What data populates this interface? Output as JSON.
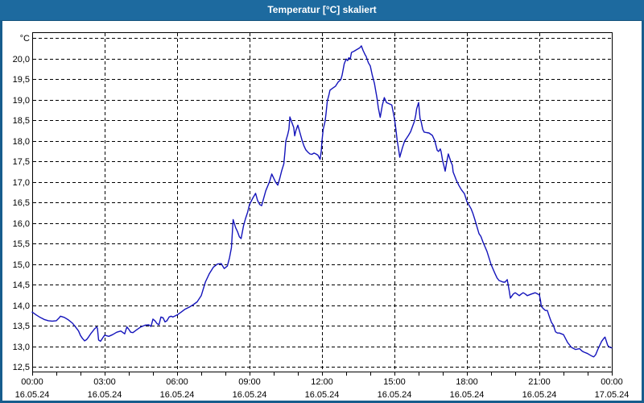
{
  "window": {
    "title": "Temperatur [°C] skaliert"
  },
  "colors": {
    "titlebar_bg": "#1d6a9f",
    "window_border": "#175d8d",
    "title_text": "#ffffff",
    "plot_bg": "#ffffff",
    "grid": "#000000",
    "axis_text": "#000000",
    "line": "#1414bb"
  },
  "chart_data": {
    "type": "line",
    "title": "Temperatur [°C] skaliert",
    "y_unit_label": "°C",
    "xlim_hours": [
      0,
      24
    ],
    "ylim": [
      12.38,
      20.62
    ],
    "grid": "dashed",
    "x_axis": {
      "minor_tick_every_hours": 1,
      "labels": [
        {
          "h": 0,
          "time": "00:00",
          "date": "16.05.24"
        },
        {
          "h": 3,
          "time": "03:00",
          "date": "16.05.24"
        },
        {
          "h": 6,
          "time": "06:00",
          "date": "16.05.24"
        },
        {
          "h": 9,
          "time": "09:00",
          "date": "16.05.24"
        },
        {
          "h": 12,
          "time": "12:00",
          "date": "16.05.24"
        },
        {
          "h": 15,
          "time": "15:00",
          "date": "16.05.24"
        },
        {
          "h": 18,
          "time": "18:00",
          "date": "16.05.24"
        },
        {
          "h": 21,
          "time": "21:00",
          "date": "16.05.24"
        },
        {
          "h": 24,
          "time": "00:00",
          "date": "17.05.24"
        }
      ]
    },
    "y_axis": {
      "min_labeled": 12.5,
      "max_gridline": 20.5,
      "grid_step": 0.5,
      "tick_labels": [
        "12,5",
        "13,0",
        "13,5",
        "14,0",
        "14,5",
        "15,0",
        "15,5",
        "16,0",
        "16,5",
        "17,0",
        "17,5",
        "18,0",
        "18,5",
        "19,0",
        "19,5",
        "20,0"
      ]
    },
    "series": [
      {
        "name": "Temperatur",
        "color": "#1414bb",
        "points_hour_temp": [
          [
            0,
            13.83
          ],
          [
            0.17,
            13.76
          ],
          [
            0.33,
            13.7
          ],
          [
            0.5,
            13.65
          ],
          [
            0.67,
            13.62
          ],
          [
            0.83,
            13.61
          ],
          [
            1,
            13.62
          ],
          [
            1.1,
            13.68
          ],
          [
            1.17,
            13.73
          ],
          [
            1.33,
            13.7
          ],
          [
            1.5,
            13.64
          ],
          [
            1.67,
            13.56
          ],
          [
            1.83,
            13.44
          ],
          [
            1.92,
            13.37
          ],
          [
            2,
            13.26
          ],
          [
            2.08,
            13.19
          ],
          [
            2.17,
            13.13
          ],
          [
            2.25,
            13.16
          ],
          [
            2.33,
            13.22
          ],
          [
            2.42,
            13.3
          ],
          [
            2.5,
            13.36
          ],
          [
            2.58,
            13.42
          ],
          [
            2.67,
            13.47
          ],
          [
            2.7,
            13.44
          ],
          [
            2.75,
            13.15
          ],
          [
            2.83,
            13.12
          ],
          [
            2.92,
            13.2
          ],
          [
            3,
            13.27
          ],
          [
            3.17,
            13.24
          ],
          [
            3.33,
            13.28
          ],
          [
            3.5,
            13.34
          ],
          [
            3.67,
            13.37
          ],
          [
            3.83,
            13.3
          ],
          [
            3.92,
            13.47
          ],
          [
            4,
            13.41
          ],
          [
            4.08,
            13.34
          ],
          [
            4.17,
            13.33
          ],
          [
            4.33,
            13.4
          ],
          [
            4.5,
            13.47
          ],
          [
            4.67,
            13.51
          ],
          [
            4.83,
            13.52
          ],
          [
            4.92,
            13.48
          ],
          [
            5,
            13.66
          ],
          [
            5.08,
            13.62
          ],
          [
            5.17,
            13.55
          ],
          [
            5.25,
            13.52
          ],
          [
            5.33,
            13.71
          ],
          [
            5.42,
            13.69
          ],
          [
            5.5,
            13.59
          ],
          [
            5.58,
            13.62
          ],
          [
            5.67,
            13.71
          ],
          [
            5.75,
            13.73
          ],
          [
            5.83,
            13.71
          ],
          [
            6,
            13.76
          ],
          [
            6.17,
            13.83
          ],
          [
            6.33,
            13.9
          ],
          [
            6.5,
            13.95
          ],
          [
            6.67,
            14.01
          ],
          [
            6.83,
            14.08
          ],
          [
            7,
            14.23
          ],
          [
            7.17,
            14.56
          ],
          [
            7.33,
            14.76
          ],
          [
            7.5,
            14.92
          ],
          [
            7.67,
            15
          ],
          [
            7.83,
            15.01
          ],
          [
            7.95,
            14.89
          ],
          [
            8.08,
            14.95
          ],
          [
            8.17,
            15.15
          ],
          [
            8.25,
            15.4
          ],
          [
            8.32,
            16.08
          ],
          [
            8.42,
            15.89
          ],
          [
            8.5,
            15.79
          ],
          [
            8.58,
            15.66
          ],
          [
            8.65,
            15.62
          ],
          [
            8.75,
            15.93
          ],
          [
            8.83,
            16.1
          ],
          [
            8.92,
            16.26
          ],
          [
            9,
            16.45
          ],
          [
            9.13,
            16.6
          ],
          [
            9.25,
            16.72
          ],
          [
            9.33,
            16.55
          ],
          [
            9.42,
            16.45
          ],
          [
            9.5,
            16.42
          ],
          [
            9.67,
            16.78
          ],
          [
            9.83,
            17.01
          ],
          [
            9.92,
            17.19
          ],
          [
            10.08,
            16.99
          ],
          [
            10.17,
            16.92
          ],
          [
            10.25,
            17.08
          ],
          [
            10.33,
            17.27
          ],
          [
            10.42,
            17.44
          ],
          [
            10.47,
            17.76
          ],
          [
            10.5,
            17.99
          ],
          [
            10.55,
            18.09
          ],
          [
            10.58,
            18.15
          ],
          [
            10.63,
            18.28
          ],
          [
            10.67,
            18.58
          ],
          [
            10.75,
            18.45
          ],
          [
            10.83,
            18.32
          ],
          [
            10.87,
            18.12
          ],
          [
            10.92,
            18.25
          ],
          [
            11,
            18.38
          ],
          [
            11.08,
            18.21
          ],
          [
            11.17,
            18.02
          ],
          [
            11.25,
            17.88
          ],
          [
            11.33,
            17.78
          ],
          [
            11.42,
            17.72
          ],
          [
            11.5,
            17.68
          ],
          [
            11.58,
            17.67
          ],
          [
            11.67,
            17.7
          ],
          [
            11.75,
            17.68
          ],
          [
            11.83,
            17.65
          ],
          [
            11.92,
            17.55
          ],
          [
            11.97,
            17.75
          ],
          [
            12,
            18
          ],
          [
            12.05,
            18.28
          ],
          [
            12.13,
            18.48
          ],
          [
            12.17,
            18.68
          ],
          [
            12.22,
            18.97
          ],
          [
            12.28,
            19.1
          ],
          [
            12.33,
            19.23
          ],
          [
            12.44,
            19.28
          ],
          [
            12.56,
            19.33
          ],
          [
            12.67,
            19.43
          ],
          [
            12.78,
            19.49
          ],
          [
            12.83,
            19.59
          ],
          [
            12.92,
            19.87
          ],
          [
            13,
            19.99
          ],
          [
            13.06,
            19.95
          ],
          [
            13.11,
            20.02
          ],
          [
            13.17,
            19.99
          ],
          [
            13.22,
            20.15
          ],
          [
            13.33,
            20.18
          ],
          [
            13.44,
            20.22
          ],
          [
            13.56,
            20.26
          ],
          [
            13.63,
            20.31
          ],
          [
            13.7,
            20.2
          ],
          [
            13.78,
            20.1
          ],
          [
            13.83,
            20.05
          ],
          [
            13.92,
            19.9
          ],
          [
            14,
            19.82
          ],
          [
            14.08,
            19.6
          ],
          [
            14.17,
            19.4
          ],
          [
            14.22,
            19.23
          ],
          [
            14.28,
            19.03
          ],
          [
            14.33,
            18.81
          ],
          [
            14.41,
            18.57
          ],
          [
            14.5,
            18.87
          ],
          [
            14.58,
            19.05
          ],
          [
            14.67,
            18.93
          ],
          [
            14.78,
            18.9
          ],
          [
            14.89,
            18.87
          ],
          [
            15,
            18.54
          ],
          [
            15.06,
            18.28
          ],
          [
            15.11,
            18.02
          ],
          [
            15.17,
            17.8
          ],
          [
            15.22,
            17.6
          ],
          [
            15.33,
            17.83
          ],
          [
            15.42,
            17.99
          ],
          [
            15.5,
            18.06
          ],
          [
            15.58,
            18.13
          ],
          [
            15.67,
            18.22
          ],
          [
            15.75,
            18.35
          ],
          [
            15.83,
            18.48
          ],
          [
            15.88,
            18.62
          ],
          [
            15.92,
            18.78
          ],
          [
            16,
            18.93
          ],
          [
            16.06,
            18.54
          ],
          [
            16.1,
            18.48
          ],
          [
            16.17,
            18.28
          ],
          [
            16.23,
            18.21
          ],
          [
            16.33,
            18.2
          ],
          [
            16.43,
            18.19
          ],
          [
            16.57,
            18.13
          ],
          [
            16.67,
            18
          ],
          [
            16.77,
            17.77
          ],
          [
            16.83,
            17.74
          ],
          [
            16.9,
            17.8
          ],
          [
            16.93,
            17.74
          ],
          [
            17,
            17.5
          ],
          [
            17.07,
            17.34
          ],
          [
            17.1,
            17.26
          ],
          [
            17.17,
            17.5
          ],
          [
            17.23,
            17.68
          ],
          [
            17.33,
            17.5
          ],
          [
            17.4,
            17.4
          ],
          [
            17.43,
            17.24
          ],
          [
            17.57,
            17.03
          ],
          [
            17.67,
            16.91
          ],
          [
            17.77,
            16.81
          ],
          [
            17.9,
            16.71
          ],
          [
            18,
            16.52
          ],
          [
            18.08,
            16.44
          ],
          [
            18.17,
            16.35
          ],
          [
            18.25,
            16.23
          ],
          [
            18.33,
            16.08
          ],
          [
            18.5,
            15.74
          ],
          [
            18.58,
            15.67
          ],
          [
            18.67,
            15.53
          ],
          [
            18.83,
            15.31
          ],
          [
            19,
            14.99
          ],
          [
            19.17,
            14.76
          ],
          [
            19.25,
            14.66
          ],
          [
            19.33,
            14.6
          ],
          [
            19.5,
            14.56
          ],
          [
            19.58,
            14.56
          ],
          [
            19.67,
            14.62
          ],
          [
            19.75,
            14.36
          ],
          [
            19.8,
            14.17
          ],
          [
            19.92,
            14.27
          ],
          [
            20,
            14.3
          ],
          [
            20.08,
            14.27
          ],
          [
            20.17,
            14.23
          ],
          [
            20.25,
            14.27
          ],
          [
            20.33,
            14.3
          ],
          [
            20.42,
            14.27
          ],
          [
            20.5,
            14.23
          ],
          [
            20.67,
            14.27
          ],
          [
            20.83,
            14.3
          ],
          [
            21,
            14.25
          ],
          [
            21.05,
            14.1
          ],
          [
            21.08,
            13.97
          ],
          [
            21.17,
            13.91
          ],
          [
            21.25,
            13.87
          ],
          [
            21.33,
            13.87
          ],
          [
            21.42,
            13.71
          ],
          [
            21.5,
            13.58
          ],
          [
            21.58,
            13.51
          ],
          [
            21.67,
            13.35
          ],
          [
            21.75,
            13.32
          ],
          [
            21.83,
            13.32
          ],
          [
            22,
            13.28
          ],
          [
            22.08,
            13.19
          ],
          [
            22.17,
            13.09
          ],
          [
            22.33,
            12.97
          ],
          [
            22.5,
            12.92
          ],
          [
            22.67,
            12.94
          ],
          [
            22.75,
            12.89
          ],
          [
            22.83,
            12.86
          ],
          [
            23,
            12.82
          ],
          [
            23.08,
            12.79
          ],
          [
            23.17,
            12.76
          ],
          [
            23.25,
            12.74
          ],
          [
            23.33,
            12.79
          ],
          [
            23.42,
            12.92
          ],
          [
            23.5,
            13.02
          ],
          [
            23.58,
            13.12
          ],
          [
            23.67,
            13.19
          ],
          [
            23.72,
            13.22
          ],
          [
            23.83,
            13.02
          ],
          [
            23.92,
            12.97
          ],
          [
            24,
            12.96
          ]
        ]
      }
    ]
  }
}
